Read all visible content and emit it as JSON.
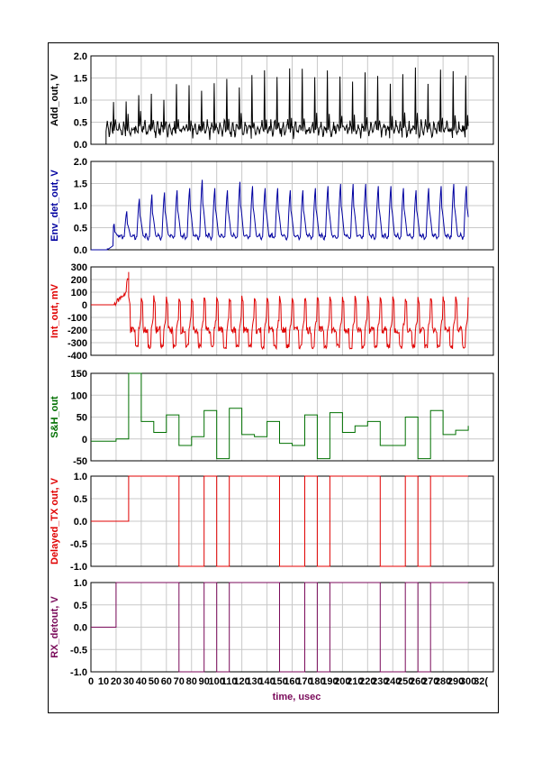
{
  "chart_data": {
    "type": "line",
    "grid": true,
    "xlabel": "time, usec",
    "xlim": [
      0,
      320
    ],
    "x_ticks": [
      "0",
      "10",
      "20",
      "30",
      "40",
      "50",
      "60",
      "70",
      "80",
      "90",
      "100",
      "110",
      "120",
      "130",
      "140",
      "150",
      "160",
      "170",
      "180",
      "190",
      "200",
      "210",
      "220",
      "230",
      "240",
      "250",
      "260",
      "270",
      "280",
      "290",
      "300",
      "32("
    ],
    "colors": {
      "add_out": "#000000",
      "env_det_out": "#0000a0",
      "int_out": "#e00000",
      "sh_out": "#007000",
      "delayed_tx": "#e00000",
      "rx_detout": "#7a0a5a"
    },
    "panels": [
      {
        "id": "add_out",
        "ylabel": "Add_out, V",
        "ylim": [
          0,
          2.0
        ],
        "y_ticks": [
          "0.0",
          "0.5",
          "1.0",
          "1.5",
          "2.0"
        ],
        "series": [
          {
            "kind": "noisy",
            "x_start": 12,
            "x_end": 300,
            "peak_start": 1.0,
            "peak_max": 1.65,
            "peak_min": 1.2,
            "base": 0.35,
            "period": 10,
            "sub_peaks": 0.6
          }
        ]
      },
      {
        "id": "env_det_out",
        "ylabel": "Env_det_out, V",
        "ylim": [
          0,
          2.0
        ],
        "y_ticks": [
          "0.0",
          "0.5",
          "1.0",
          "1.5",
          "2.0"
        ],
        "series": [
          {
            "kind": "envelope",
            "x_start": 13,
            "x_end": 300,
            "peaks": [
              0.6,
              0.9,
              1.2,
              1.3,
              1.35,
              1.4,
              1.45,
              1.65,
              1.45,
              1.4,
              1.6,
              1.5,
              1.45,
              1.45,
              1.4,
              1.4,
              1.45,
              1.5,
              1.55,
              1.55,
              1.55,
              1.5,
              1.5,
              1.45,
              1.4,
              1.45,
              1.5,
              1.55,
              1.5,
              1.45
            ],
            "base": 0.3,
            "period": 10
          }
        ]
      },
      {
        "id": "int_out",
        "ylabel": "Int_out, mV",
        "ylim": [
          -400,
          300
        ],
        "y_ticks": [
          "-400",
          "-300",
          "-200",
          "-100",
          "0",
          "100",
          "200",
          "300"
        ],
        "series": [
          {
            "kind": "integrator",
            "x_start": 0,
            "x_end": 300,
            "lead_peak": 260,
            "peak": 60,
            "trough": -330,
            "mid": -200,
            "period": 10
          }
        ]
      },
      {
        "id": "sh_out",
        "ylabel": "S&H_out",
        "ylim": [
          -50,
          150
        ],
        "y_ticks": [
          "-50",
          "0",
          "50",
          "100",
          "150"
        ],
        "series": [
          {
            "kind": "step",
            "x": [
              0,
              10,
              20,
              30,
              40,
              50,
              60,
              70,
              80,
              90,
              100,
              110,
              120,
              130,
              140,
              150,
              160,
              170,
              180,
              190,
              200,
              210,
              220,
              230,
              240,
              250,
              260,
              270,
              280,
              290,
              300
            ],
            "y": [
              -5,
              -5,
              0,
              155,
              40,
              15,
              55,
              -15,
              5,
              65,
              -45,
              70,
              10,
              5,
              40,
              -10,
              -15,
              55,
              -45,
              60,
              15,
              30,
              40,
              -15,
              -15,
              50,
              -45,
              65,
              10,
              20,
              30
            ]
          }
        ]
      },
      {
        "id": "delayed_tx",
        "ylabel": "Delayed_TX out, V",
        "ylim": [
          -1.0,
          1.0
        ],
        "y_ticks": [
          "-1.0",
          "-0.5",
          "0.0",
          "0.5",
          "1.0"
        ],
        "series": [
          {
            "kind": "step",
            "x": [
              0,
              30,
              70,
              90,
              100,
              110,
              150,
              170,
              180,
              190,
              230,
              250,
              260,
              270,
              300
            ],
            "y": [
              0,
              1,
              -1,
              1,
              -1,
              1,
              -1,
              1,
              -1,
              1,
              -1,
              1,
              -1,
              1,
              1
            ]
          }
        ]
      },
      {
        "id": "rx_detout",
        "ylabel": "RX_detout, V",
        "ylim": [
          -1.0,
          1.0
        ],
        "y_ticks": [
          "-1.0",
          "-0.5",
          "0.0",
          "0.5",
          "1.0"
        ],
        "series": [
          {
            "kind": "step",
            "x": [
              0,
              20,
              70,
              90,
              100,
              110,
              150,
              170,
              180,
              190,
              230,
              250,
              260,
              270,
              300
            ],
            "y": [
              0,
              1,
              -1,
              1,
              -1,
              1,
              -1,
              1,
              -1,
              1,
              -1,
              1,
              -1,
              1,
              1
            ]
          }
        ]
      }
    ]
  }
}
